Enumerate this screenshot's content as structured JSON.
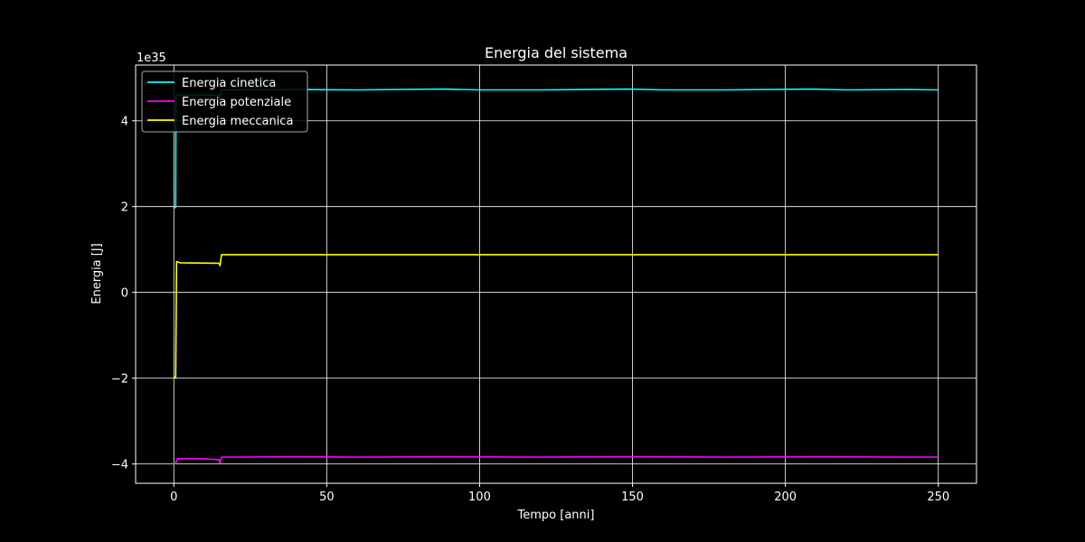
{
  "chart_data": {
    "type": "line",
    "title": "Energia del sistema",
    "xlabel": "Tempo [anni]",
    "ylabel": "Energia [J]",
    "y_multiplier_label": "1e35",
    "xlim": [
      -12.5,
      262.5
    ],
    "ylim": [
      -4.45,
      5.3
    ],
    "x_ticks": [
      0,
      50,
      100,
      150,
      200,
      250
    ],
    "x_tick_labels": [
      "0",
      "50",
      "100",
      "150",
      "200",
      "250"
    ],
    "y_ticks": [
      -4,
      -2,
      0,
      2,
      4
    ],
    "y_tick_labels": [
      "−4",
      "−2",
      "0",
      "2",
      "4"
    ],
    "grid": true,
    "legend_position": "top-left",
    "background": "#000000",
    "series": [
      {
        "name": "Energia cinetica",
        "color": "#00ffff",
        "points": [
          [
            0,
            1.98
          ],
          [
            0.6,
            1.98
          ],
          [
            0.7,
            4.6
          ],
          [
            1,
            4.6
          ],
          [
            14.8,
            4.6
          ],
          [
            15.1,
            4.5
          ],
          [
            15.5,
            4.72
          ],
          [
            20,
            4.72
          ],
          [
            40,
            4.73
          ],
          [
            60,
            4.72
          ],
          [
            88,
            4.74
          ],
          [
            100,
            4.72
          ],
          [
            120,
            4.72
          ],
          [
            148,
            4.74
          ],
          [
            160,
            4.72
          ],
          [
            180,
            4.72
          ],
          [
            208,
            4.74
          ],
          [
            220,
            4.72
          ],
          [
            240,
            4.73
          ],
          [
            250,
            4.72
          ]
        ]
      },
      {
        "name": "Energia potenziale",
        "color": "#ff00ff",
        "points": [
          [
            0,
            -4.0
          ],
          [
            0.6,
            -3.98
          ],
          [
            1.2,
            -3.88
          ],
          [
            5,
            -3.87
          ],
          [
            10,
            -3.88
          ],
          [
            14.8,
            -3.9
          ],
          [
            15.1,
            -3.98
          ],
          [
            15.6,
            -3.84
          ],
          [
            20,
            -3.84
          ],
          [
            40,
            -3.83
          ],
          [
            60,
            -3.84
          ],
          [
            90,
            -3.83
          ],
          [
            120,
            -3.84
          ],
          [
            150,
            -3.83
          ],
          [
            180,
            -3.84
          ],
          [
            210,
            -3.83
          ],
          [
            240,
            -3.84
          ],
          [
            250,
            -3.84
          ]
        ]
      },
      {
        "name": "Energia meccanica",
        "color": "#ffff00",
        "points": [
          [
            0,
            -1.98
          ],
          [
            0.6,
            -1.98
          ],
          [
            0.9,
            0.72
          ],
          [
            2,
            0.69
          ],
          [
            14.8,
            0.68
          ],
          [
            15.1,
            0.62
          ],
          [
            15.6,
            0.88
          ],
          [
            20,
            0.88
          ],
          [
            60,
            0.88
          ],
          [
            100,
            0.88
          ],
          [
            150,
            0.88
          ],
          [
            200,
            0.88
          ],
          [
            250,
            0.88
          ]
        ]
      }
    ]
  }
}
